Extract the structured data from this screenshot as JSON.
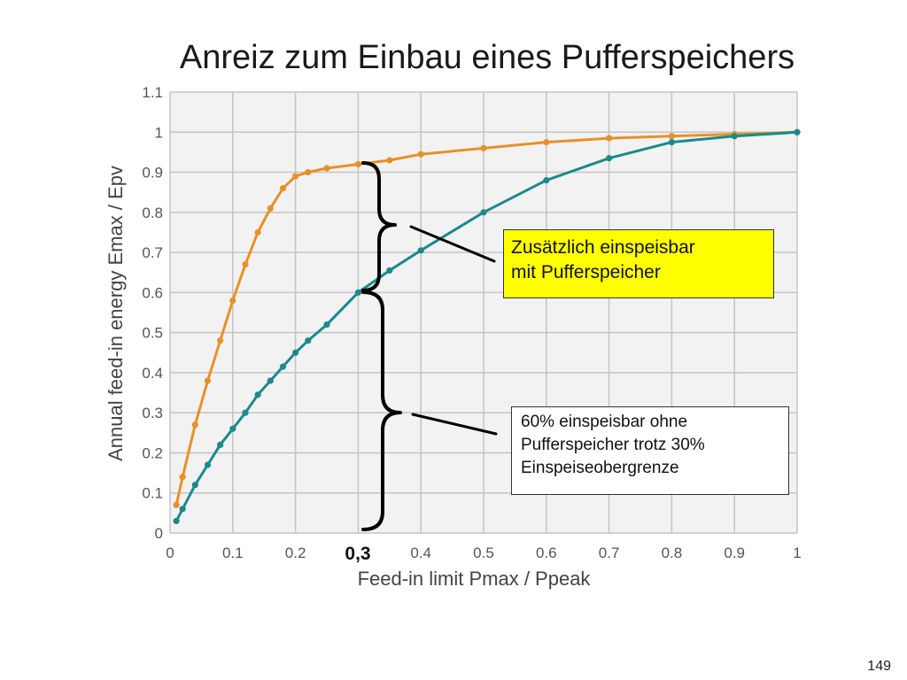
{
  "slide": {
    "title": "Anreiz zum Einbau eines Pufferspeichers",
    "page_number": "149"
  },
  "annotations": {
    "marker_label": "0,3",
    "callout_top_line1": "Zusätzlich einspeisbar",
    "callout_top_line2": "mit  Pufferspeicher",
    "callout_bottom_line1": "60% einspeisbar  ohne",
    "callout_bottom_line2": "Pufferspeicher  trotz 30%",
    "callout_bottom_line3": "Einspeiseobergrenze",
    "callout_top_color": "#ffff00"
  },
  "chart_data": {
    "type": "line",
    "xlabel": "Feed-in limit Pmax / Ppeak",
    "ylabel": "Annual feed-in energy Emax / Epv",
    "xlim": [
      0,
      1
    ],
    "ylim": [
      0,
      1.1
    ],
    "x_ticks": [
      "0",
      "0.1",
      "0.2",
      "0.3",
      "0.4",
      "0.5",
      "0.6",
      "0.7",
      "0.8",
      "0.9",
      "1"
    ],
    "y_ticks": [
      "0",
      "0.1",
      "0.2",
      "0.3",
      "0.4",
      "0.5",
      "0.6",
      "0.7",
      "0.8",
      "0.9",
      "1",
      "1.1"
    ],
    "grid": true,
    "series": [
      {
        "color": "#e8902a",
        "x": [
          0.01,
          0.02,
          0.04,
          0.06,
          0.08,
          0.1,
          0.12,
          0.14,
          0.16,
          0.18,
          0.2,
          0.22,
          0.25,
          0.3,
          0.35,
          0.4,
          0.5,
          0.6,
          0.7,
          0.8,
          0.9,
          1.0
        ],
        "y": [
          0.07,
          0.14,
          0.27,
          0.38,
          0.48,
          0.58,
          0.67,
          0.75,
          0.81,
          0.86,
          0.89,
          0.9,
          0.91,
          0.92,
          0.93,
          0.945,
          0.96,
          0.975,
          0.985,
          0.99,
          0.995,
          1.0
        ]
      },
      {
        "color": "#1a8a8a",
        "x": [
          0.01,
          0.02,
          0.04,
          0.06,
          0.08,
          0.1,
          0.12,
          0.14,
          0.16,
          0.18,
          0.2,
          0.22,
          0.25,
          0.3,
          0.35,
          0.4,
          0.5,
          0.6,
          0.7,
          0.8,
          0.9,
          1.0
        ],
        "y": [
          0.03,
          0.06,
          0.12,
          0.17,
          0.22,
          0.26,
          0.3,
          0.345,
          0.38,
          0.415,
          0.45,
          0.48,
          0.52,
          0.6,
          0.655,
          0.705,
          0.8,
          0.88,
          0.935,
          0.975,
          0.99,
          1.0
        ]
      }
    ]
  }
}
